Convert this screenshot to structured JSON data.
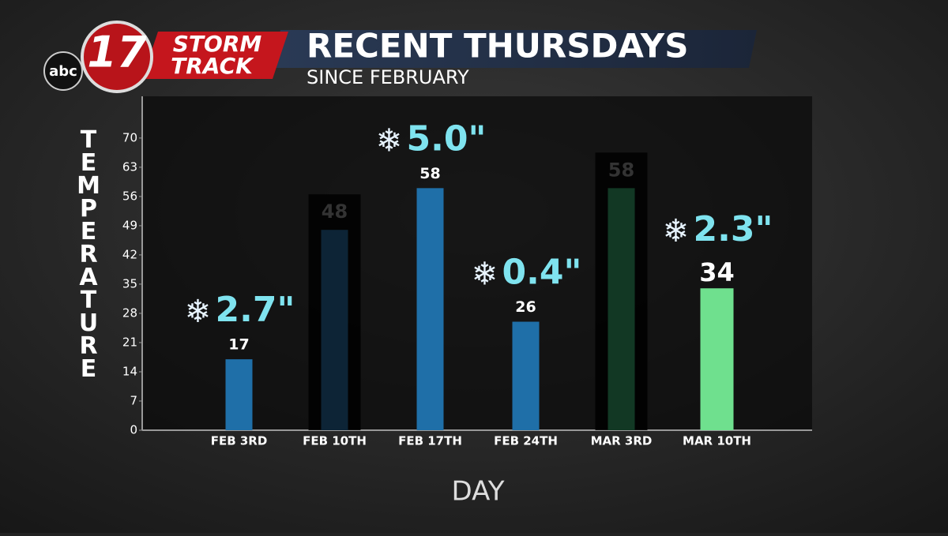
{
  "brand": {
    "network": "abc",
    "channel": "17",
    "line1": "STORM",
    "line2": "TRACK"
  },
  "chart_data": {
    "type": "bar",
    "title": "RECENT THURSDAYS",
    "subtitle": "SINCE FEBRUARY",
    "y_label": "TEMPERATURE",
    "x_label": "DAY",
    "categories": [
      "FEB 3RD",
      "FEB 10TH",
      "FEB 17TH",
      "FEB 24TH",
      "MAR 3RD",
      "MAR 10TH"
    ],
    "values": [
      17,
      48,
      58,
      26,
      58,
      34
    ],
    "colors": [
      "#1f6fa8",
      "#0d2436",
      "#1f6fa8",
      "#1f6fa8",
      "#123824",
      "#6fe08e"
    ],
    "snowfall": [
      2.7,
      null,
      5.0,
      0.4,
      null,
      2.3
    ],
    "snowfall_labels": [
      "2.7\"",
      null,
      "5.0\"",
      "0.4\"",
      null,
      "2.3\""
    ],
    "ylim": [
      0,
      80
    ],
    "yticks": [
      0,
      7,
      14,
      21,
      28,
      35,
      42,
      49,
      56,
      63,
      70
    ]
  }
}
